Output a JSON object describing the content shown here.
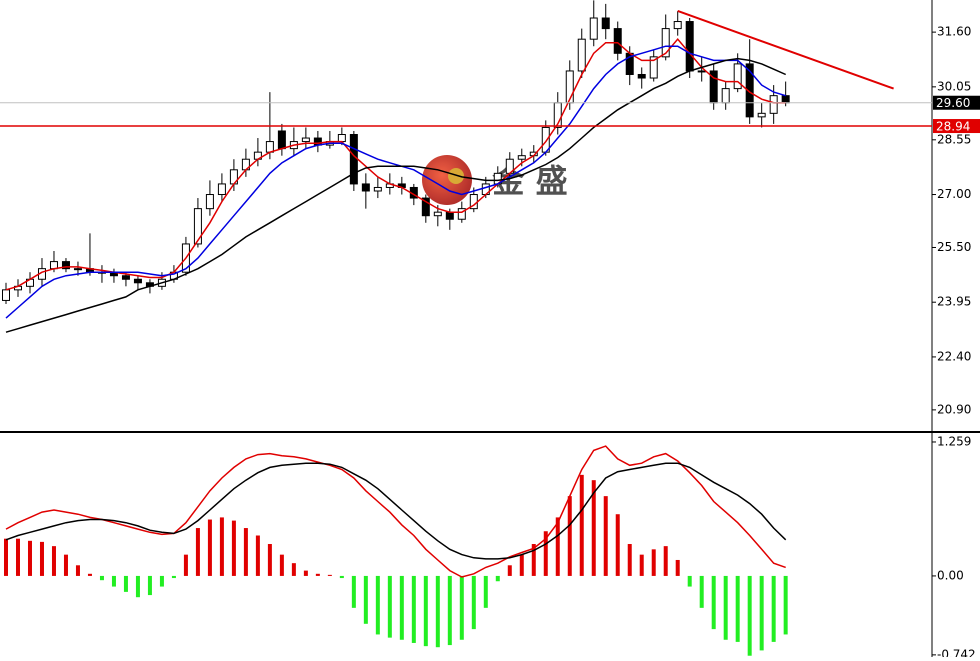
{
  "chart_data": [
    {
      "type": "candlestick",
      "watermark": "金 盛",
      "xlim": [
        -0.5,
        77.2
      ],
      "ylim": [
        20.33,
        32.51
      ],
      "yticks": [
        {
          "value": 31.6,
          "label": "31.60"
        },
        {
          "value": 30.05,
          "label": "30.05"
        },
        {
          "value": 28.55,
          "label": "28.55"
        },
        {
          "value": 27,
          "label": "27.00"
        },
        {
          "value": 25.5,
          "label": "25.50"
        },
        {
          "value": 23.95,
          "label": "23.95"
        },
        {
          "value": 22.4,
          "label": "22.40"
        },
        {
          "value": 20.9,
          "label": "20.90"
        }
      ],
      "up_color": "#ffffff",
      "down_color": "#000000",
      "ohlc": [
        [
          24.0,
          24.5,
          23.9,
          24.3
        ],
        [
          24.3,
          24.6,
          24.1,
          24.4
        ],
        [
          24.4,
          24.8,
          24.2,
          24.6
        ],
        [
          24.6,
          25.2,
          24.4,
          24.9
        ],
        [
          24.9,
          25.4,
          24.8,
          25.1
        ],
        [
          25.1,
          25.2,
          24.8,
          24.9
        ],
        [
          24.9,
          25.1,
          24.7,
          24.9
        ],
        [
          24.9,
          25.9,
          24.7,
          24.8
        ],
        [
          24.8,
          25.0,
          24.5,
          24.8
        ],
        [
          24.8,
          24.9,
          24.5,
          24.7
        ],
        [
          24.7,
          24.8,
          24.4,
          24.6
        ],
        [
          24.6,
          24.7,
          24.3,
          24.5
        ],
        [
          24.5,
          24.6,
          24.2,
          24.4
        ],
        [
          24.4,
          24.8,
          24.3,
          24.6
        ],
        [
          24.6,
          25.0,
          24.5,
          24.8
        ],
        [
          24.8,
          25.8,
          24.7,
          25.6
        ],
        [
          25.6,
          26.9,
          25.5,
          26.6
        ],
        [
          26.6,
          27.4,
          26.4,
          27.0
        ],
        [
          27.0,
          27.6,
          26.8,
          27.3
        ],
        [
          27.3,
          28.0,
          27.1,
          27.7
        ],
        [
          27.7,
          28.3,
          27.5,
          28.0
        ],
        [
          28.0,
          28.6,
          27.8,
          28.2
        ],
        [
          28.2,
          29.9,
          28.0,
          28.5
        ],
        [
          28.8,
          29.0,
          28.1,
          28.3
        ],
        [
          28.3,
          28.9,
          28.1,
          28.5
        ],
        [
          28.5,
          28.9,
          28.3,
          28.6
        ],
        [
          28.6,
          28.8,
          28.2,
          28.4
        ],
        [
          28.4,
          28.8,
          28.3,
          28.5
        ],
        [
          28.5,
          28.9,
          28.4,
          28.7
        ],
        [
          28.7,
          28.8,
          27.1,
          27.3
        ],
        [
          27.3,
          27.6,
          26.6,
          27.1
        ],
        [
          27.1,
          27.5,
          26.9,
          27.2
        ],
        [
          27.2,
          27.6,
          27.0,
          27.3
        ],
        [
          27.3,
          27.5,
          27.0,
          27.2
        ],
        [
          27.2,
          27.3,
          26.7,
          26.9
        ],
        [
          26.9,
          27.0,
          26.2,
          26.4
        ],
        [
          26.4,
          26.7,
          26.1,
          26.5
        ],
        [
          26.5,
          26.6,
          26.0,
          26.3
        ],
        [
          26.3,
          26.8,
          26.2,
          26.6
        ],
        [
          26.6,
          27.2,
          26.5,
          27.0
        ],
        [
          27.0,
          27.5,
          26.9,
          27.3
        ],
        [
          27.3,
          27.8,
          27.2,
          27.6
        ],
        [
          27.6,
          28.2,
          27.5,
          28.0
        ],
        [
          28.0,
          28.3,
          27.8,
          28.1
        ],
        [
          28.1,
          28.4,
          27.9,
          28.2
        ],
        [
          28.2,
          29.1,
          28.1,
          28.9
        ],
        [
          28.9,
          29.9,
          28.7,
          29.6
        ],
        [
          29.6,
          30.8,
          29.4,
          30.5
        ],
        [
          30.5,
          31.7,
          30.3,
          31.4
        ],
        [
          31.4,
          32.5,
          31.2,
          32.0
        ],
        [
          32.0,
          32.4,
          31.4,
          31.7
        ],
        [
          31.7,
          31.9,
          30.8,
          31.0
        ],
        [
          31.0,
          31.2,
          30.1,
          30.4
        ],
        [
          30.4,
          30.6,
          30.0,
          30.3
        ],
        [
          30.3,
          31.1,
          30.2,
          30.9
        ],
        [
          30.9,
          32.1,
          30.8,
          31.7
        ],
        [
          31.7,
          32.2,
          31.5,
          31.9
        ],
        [
          31.9,
          32.0,
          30.3,
          30.5
        ],
        [
          30.5,
          30.9,
          30.2,
          30.5
        ],
        [
          30.5,
          30.7,
          29.4,
          29.6
        ],
        [
          29.6,
          30.2,
          29.4,
          30.0
        ],
        [
          30.0,
          31.0,
          29.9,
          30.7
        ],
        [
          30.7,
          31.4,
          29.0,
          29.2
        ],
        [
          29.2,
          29.6,
          28.9,
          29.3
        ],
        [
          29.3,
          30.1,
          29.0,
          29.8
        ],
        [
          29.8,
          30.2,
          29.5,
          29.6
        ]
      ],
      "series": [
        {
          "color": "#e00000",
          "values": [
            24.3,
            24.4,
            24.6,
            24.8,
            24.9,
            24.95,
            24.95,
            24.9,
            24.85,
            24.8,
            24.75,
            24.7,
            24.65,
            24.65,
            24.8,
            25.2,
            25.7,
            26.2,
            26.8,
            27.3,
            27.7,
            28.0,
            28.2,
            28.3,
            28.4,
            28.45,
            28.45,
            28.5,
            28.5,
            28.1,
            27.8,
            27.5,
            27.3,
            27.2,
            27.0,
            26.8,
            26.6,
            26.5,
            26.5,
            26.7,
            27.0,
            27.3,
            27.6,
            27.9,
            28.1,
            28.5,
            29.0,
            29.7,
            30.4,
            31.0,
            31.3,
            31.3,
            31.0,
            30.8,
            30.8,
            31.0,
            31.4,
            31.0,
            30.6,
            30.3,
            30.2,
            30.2,
            29.9,
            29.7,
            29.6,
            29.6
          ]
        },
        {
          "color": "#0000e0",
          "values": [
            23.5,
            23.8,
            24.1,
            24.4,
            24.6,
            24.7,
            24.75,
            24.8,
            24.8,
            24.8,
            24.8,
            24.8,
            24.75,
            24.7,
            24.75,
            24.9,
            25.2,
            25.6,
            26.0,
            26.4,
            26.8,
            27.2,
            27.6,
            27.9,
            28.1,
            28.3,
            28.4,
            28.45,
            28.45,
            28.3,
            28.15,
            28.0,
            27.9,
            27.8,
            27.7,
            27.5,
            27.3,
            27.1,
            27.0,
            27.1,
            27.2,
            27.3,
            27.5,
            27.7,
            27.9,
            28.2,
            28.6,
            29.0,
            29.5,
            30.0,
            30.4,
            30.7,
            30.9,
            31.0,
            31.1,
            31.2,
            31.2,
            31.0,
            30.9,
            30.8,
            30.8,
            30.8,
            30.5,
            30.1,
            29.9,
            29.8
          ]
        },
        {
          "color": "#000000",
          "values": [
            23.1,
            23.2,
            23.3,
            23.4,
            23.5,
            23.6,
            23.7,
            23.8,
            23.9,
            24.0,
            24.1,
            24.3,
            24.4,
            24.5,
            24.6,
            24.75,
            24.9,
            25.1,
            25.3,
            25.55,
            25.8,
            26.0,
            26.2,
            26.4,
            26.6,
            26.8,
            27.0,
            27.2,
            27.4,
            27.6,
            27.75,
            27.8,
            27.8,
            27.8,
            27.8,
            27.75,
            27.7,
            27.6,
            27.5,
            27.45,
            27.4,
            27.4,
            27.45,
            27.55,
            27.7,
            27.85,
            28.05,
            28.3,
            28.6,
            28.9,
            29.15,
            29.4,
            29.6,
            29.8,
            30.0,
            30.15,
            30.35,
            30.5,
            30.6,
            30.7,
            30.8,
            30.85,
            30.8,
            30.7,
            30.55,
            30.4
          ]
        }
      ],
      "trendline": {
        "color": "#e00000",
        "x": [
          56,
          74
        ],
        "y": [
          32.2,
          30.0
        ]
      },
      "price_lines": [
        {
          "value": 29.6,
          "label": "29.60",
          "color": "#000000",
          "line_color": "#c0c0c0"
        },
        {
          "value": 28.94,
          "label": "28.94",
          "color": "#e00000",
          "line_color": "#e00000"
        }
      ]
    },
    {
      "type": "macd",
      "xlim": [
        -0.5,
        77.2
      ],
      "ylim": [
        -0.762,
        1.334
      ],
      "yticks": [
        1.259,
        {
          "value": 0,
          "label": "0.00"
        },
        -0.742
      ],
      "histogram": {
        "up_color": "#e00000",
        "down_color": "#22ee22",
        "values": [
          0.35,
          0.35,
          0.33,
          0.32,
          0.28,
          0.2,
          0.1,
          0.02,
          -0.04,
          -0.1,
          -0.15,
          -0.2,
          -0.18,
          -0.1,
          -0.02,
          0.2,
          0.45,
          0.53,
          0.55,
          0.52,
          0.45,
          0.38,
          0.3,
          0.2,
          0.12,
          0.05,
          0.02,
          0.01,
          -0.02,
          -0.3,
          -0.45,
          -0.55,
          -0.58,
          -0.6,
          -0.63,
          -0.66,
          -0.67,
          -0.65,
          -0.6,
          -0.5,
          -0.3,
          -0.05,
          0.1,
          0.2,
          0.3,
          0.42,
          0.55,
          0.75,
          0.95,
          0.9,
          0.75,
          0.58,
          0.3,
          0.2,
          0.25,
          0.28,
          0.15,
          -0.1,
          -0.3,
          -0.5,
          -0.6,
          -0.62,
          -0.75,
          -0.7,
          -0.62,
          -0.55
        ]
      },
      "series": [
        {
          "color": "#e00000",
          "values": [
            0.44,
            0.5,
            0.55,
            0.6,
            0.62,
            0.6,
            0.58,
            0.55,
            0.53,
            0.5,
            0.47,
            0.44,
            0.41,
            0.39,
            0.4,
            0.5,
            0.65,
            0.8,
            0.92,
            1.02,
            1.1,
            1.14,
            1.15,
            1.13,
            1.12,
            1.1,
            1.07,
            1.04,
            1.0,
            0.92,
            0.8,
            0.7,
            0.6,
            0.48,
            0.38,
            0.25,
            0.15,
            0.05,
            -0.01,
            0.02,
            0.08,
            0.12,
            0.18,
            0.22,
            0.26,
            0.35,
            0.5,
            0.75,
            1.0,
            1.18,
            1.22,
            1.1,
            1.04,
            1.06,
            1.12,
            1.15,
            1.08,
            0.97,
            0.85,
            0.7,
            0.6,
            0.5,
            0.38,
            0.25,
            0.12,
            0.08
          ]
        },
        {
          "color": "#000000",
          "values": [
            0.34,
            0.38,
            0.41,
            0.44,
            0.47,
            0.5,
            0.52,
            0.53,
            0.53,
            0.52,
            0.5,
            0.47,
            0.43,
            0.41,
            0.4,
            0.44,
            0.52,
            0.62,
            0.72,
            0.82,
            0.9,
            0.97,
            1.02,
            1.04,
            1.05,
            1.06,
            1.06,
            1.05,
            1.02,
            0.96,
            0.9,
            0.82,
            0.72,
            0.62,
            0.52,
            0.42,
            0.33,
            0.25,
            0.2,
            0.17,
            0.16,
            0.16,
            0.17,
            0.2,
            0.24,
            0.3,
            0.38,
            0.48,
            0.62,
            0.78,
            0.92,
            0.98,
            1.0,
            1.02,
            1.04,
            1.06,
            1.06,
            1.02,
            0.95,
            0.88,
            0.82,
            0.76,
            0.68,
            0.58,
            0.45,
            0.34
          ]
        }
      ]
    }
  ]
}
